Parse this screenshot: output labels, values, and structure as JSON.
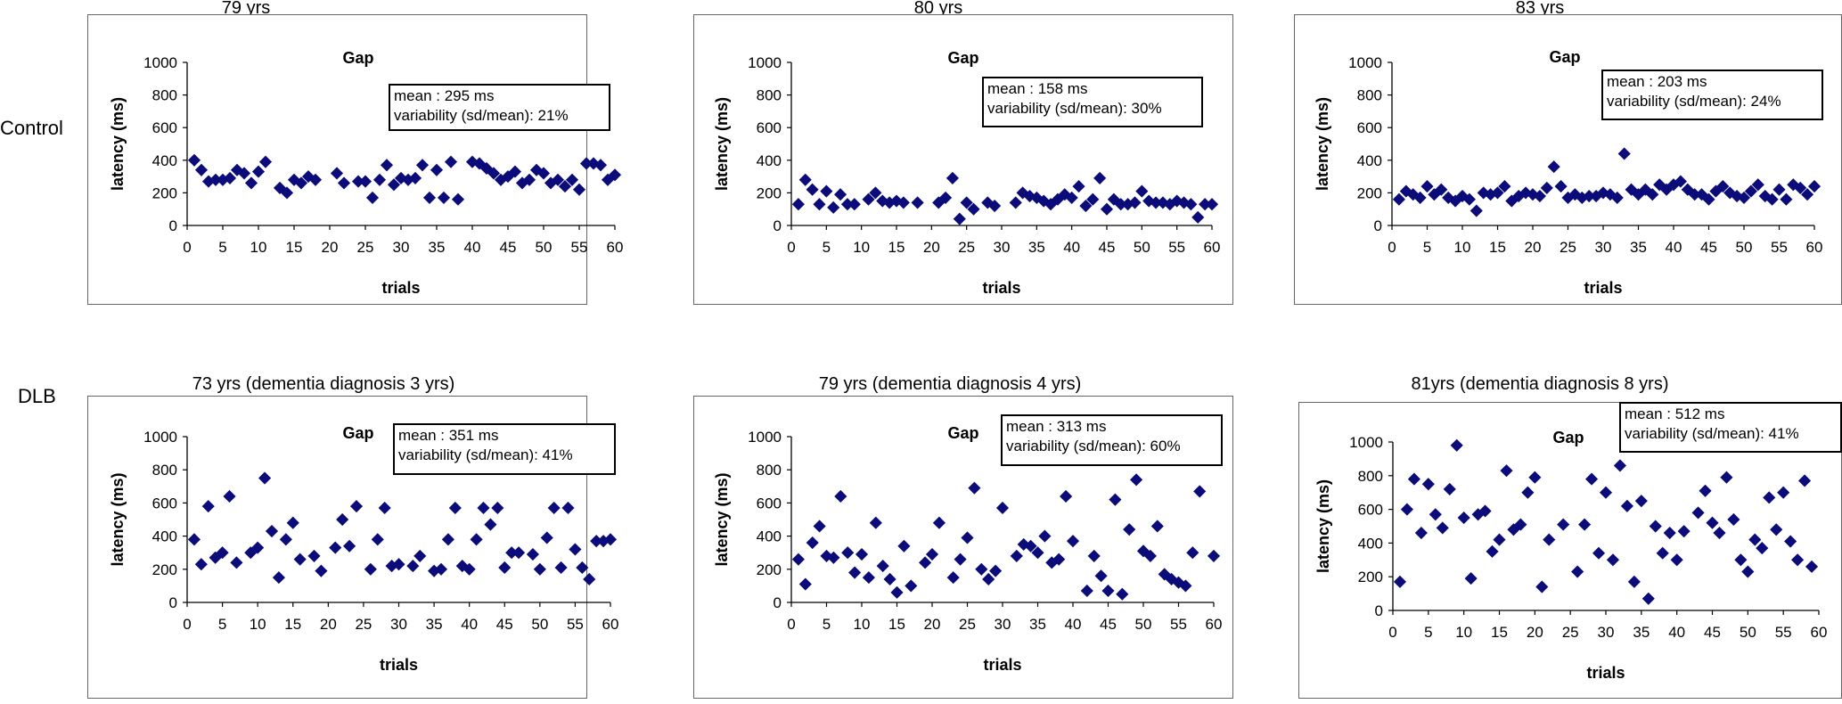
{
  "row_labels": [
    "Control",
    "DLB"
  ],
  "chart_data": [
    {
      "type": "scatter",
      "group": "Control",
      "panel_title": "79 yrs",
      "title": "Gap",
      "xlabel": "trials",
      "ylabel": "latency (ms)",
      "xlim": [
        0,
        60
      ],
      "ylim": [
        0,
        1000
      ],
      "xticks": [
        0,
        5,
        10,
        15,
        20,
        25,
        30,
        35,
        40,
        45,
        50,
        55,
        60
      ],
      "yticks": [
        0,
        200,
        400,
        600,
        800,
        1000
      ],
      "mean_text": "mean : 295 ms",
      "variability_text": "variability (sd/mean): 21%",
      "x": [
        1,
        2,
        3,
        4,
        5,
        6,
        7,
        8,
        9,
        10,
        11,
        13,
        14,
        15,
        16,
        17,
        18,
        21,
        22,
        24,
        25,
        26,
        27,
        28,
        29,
        30,
        31,
        32,
        33,
        34,
        35,
        36,
        37,
        38,
        40,
        41,
        42,
        43,
        44,
        45,
        46,
        47,
        48,
        49,
        50,
        51,
        52,
        53,
        54,
        55,
        56,
        57,
        58,
        59,
        60
      ],
      "y": [
        400,
        340,
        270,
        280,
        280,
        290,
        340,
        320,
        260,
        330,
        390,
        230,
        200,
        280,
        260,
        300,
        280,
        320,
        260,
        270,
        270,
        170,
        280,
        370,
        250,
        290,
        280,
        290,
        370,
        170,
        340,
        170,
        390,
        160,
        390,
        380,
        350,
        320,
        280,
        300,
        330,
        260,
        280,
        340,
        320,
        260,
        280,
        240,
        280,
        220,
        380,
        380,
        370,
        280,
        310
      ]
    },
    {
      "type": "scatter",
      "group": "Control",
      "panel_title": "80 yrs",
      "title": "Gap",
      "xlabel": "trials",
      "ylabel": "latency (ms)",
      "xlim": [
        0,
        60
      ],
      "ylim": [
        0,
        1000
      ],
      "xticks": [
        0,
        5,
        10,
        15,
        20,
        25,
        30,
        35,
        40,
        45,
        50,
        55,
        60
      ],
      "yticks": [
        0,
        200,
        400,
        600,
        800,
        1000
      ],
      "mean_text": "mean : 158 ms",
      "variability_text": "variability (sd/mean): 30%",
      "x": [
        1,
        2,
        3,
        4,
        5,
        6,
        7,
        8,
        9,
        11,
        12,
        13,
        14,
        15,
        16,
        18,
        21,
        22,
        23,
        24,
        25,
        26,
        28,
        29,
        32,
        33,
        34,
        35,
        36,
        37,
        38,
        39,
        40,
        41,
        42,
        43,
        44,
        45,
        46,
        47,
        48,
        49,
        50,
        51,
        52,
        53,
        54,
        55,
        56,
        57,
        58,
        59,
        60
      ],
      "y": [
        130,
        280,
        220,
        130,
        210,
        110,
        190,
        130,
        130,
        160,
        200,
        150,
        140,
        150,
        140,
        140,
        140,
        170,
        290,
        40,
        140,
        100,
        140,
        120,
        140,
        200,
        180,
        170,
        150,
        130,
        160,
        190,
        170,
        240,
        120,
        160,
        290,
        100,
        160,
        130,
        130,
        140,
        210,
        150,
        140,
        140,
        130,
        150,
        140,
        130,
        50,
        130,
        130
      ]
    },
    {
      "type": "scatter",
      "group": "Control",
      "panel_title": "83 yrs",
      "title": "Gap",
      "xlabel": "trials",
      "ylabel": "latency (ms)",
      "xlim": [
        0,
        60
      ],
      "ylim": [
        0,
        1000
      ],
      "xticks": [
        0,
        5,
        10,
        15,
        20,
        25,
        30,
        35,
        40,
        45,
        50,
        55,
        60
      ],
      "yticks": [
        0,
        200,
        400,
        600,
        800,
        1000
      ],
      "mean_text": "mean : 203 ms",
      "variability_text": "variability (sd/mean): 24%",
      "x": [
        1,
        2,
        3,
        4,
        5,
        6,
        7,
        8,
        9,
        10,
        11,
        12,
        13,
        14,
        15,
        16,
        17,
        18,
        19,
        20,
        21,
        22,
        23,
        24,
        25,
        26,
        27,
        28,
        29,
        30,
        31,
        32,
        33,
        34,
        35,
        36,
        37,
        38,
        39,
        40,
        41,
        42,
        43,
        44,
        45,
        46,
        47,
        48,
        49,
        50,
        51,
        52,
        53,
        54,
        55,
        56,
        57,
        58,
        59,
        60
      ],
      "y": [
        160,
        210,
        190,
        170,
        240,
        190,
        220,
        170,
        150,
        180,
        160,
        90,
        200,
        190,
        200,
        240,
        150,
        180,
        200,
        190,
        180,
        230,
        360,
        240,
        170,
        190,
        170,
        180,
        180,
        200,
        190,
        170,
        440,
        220,
        190,
        220,
        190,
        250,
        220,
        250,
        270,
        220,
        190,
        190,
        160,
        210,
        240,
        200,
        180,
        170,
        210,
        250,
        180,
        160,
        220,
        160,
        250,
        230,
        190,
        240
      ]
    },
    {
      "type": "scatter",
      "group": "DLB",
      "panel_title": "73 yrs (dementia diagnosis 3 yrs)",
      "title": "Gap",
      "xlabel": "trials",
      "ylabel": "latency (ms)",
      "xlim": [
        0,
        60
      ],
      "ylim": [
        0,
        1000
      ],
      "xticks": [
        0,
        5,
        10,
        15,
        20,
        25,
        30,
        35,
        40,
        45,
        50,
        55,
        60
      ],
      "yticks": [
        0,
        200,
        400,
        600,
        800,
        1000
      ],
      "mean_text": "mean : 351 ms",
      "variability_text": "variability (sd/mean): 41%",
      "x": [
        1,
        2,
        3,
        4,
        5,
        6,
        7,
        9,
        10,
        11,
        12,
        13,
        14,
        15,
        16,
        18,
        19,
        21,
        22,
        23,
        24,
        26,
        27,
        28,
        29,
        30,
        32,
        33,
        35,
        36,
        37,
        38,
        39,
        40,
        41,
        42,
        43,
        44,
        45,
        46,
        47,
        49,
        50,
        51,
        52,
        53,
        54,
        55,
        56,
        57,
        58,
        59,
        60
      ],
      "y": [
        380,
        230,
        580,
        270,
        300,
        640,
        240,
        300,
        330,
        750,
        430,
        150,
        380,
        480,
        260,
        280,
        190,
        330,
        500,
        340,
        580,
        200,
        380,
        570,
        220,
        230,
        220,
        280,
        190,
        200,
        380,
        570,
        220,
        200,
        380,
        570,
        470,
        570,
        210,
        300,
        300,
        290,
        200,
        390,
        570,
        210,
        570,
        320,
        210,
        140,
        370,
        370,
        380
      ]
    },
    {
      "type": "scatter",
      "group": "DLB",
      "panel_title": "79 yrs (dementia diagnosis 4 yrs)",
      "title": "Gap",
      "xlabel": "trials",
      "ylabel": "latency (ms)",
      "xlim": [
        0,
        60
      ],
      "ylim": [
        0,
        1000
      ],
      "xticks": [
        0,
        5,
        10,
        15,
        20,
        25,
        30,
        35,
        40,
        45,
        50,
        55,
        60
      ],
      "yticks": [
        0,
        200,
        400,
        600,
        800,
        1000
      ],
      "mean_text": "mean : 313 ms",
      "variability_text": "variability (sd/mean): 60%",
      "x": [
        1,
        2,
        3,
        4,
        5,
        6,
        7,
        8,
        9,
        10,
        11,
        12,
        13,
        14,
        15,
        16,
        17,
        19,
        20,
        21,
        23,
        24,
        25,
        26,
        27,
        28,
        29,
        30,
        32,
        33,
        34,
        35,
        36,
        37,
        38,
        39,
        40,
        42,
        43,
        44,
        45,
        46,
        47,
        48,
        49,
        50,
        51,
        52,
        53,
        54,
        55,
        56,
        57,
        58,
        60
      ],
      "y": [
        260,
        110,
        360,
        460,
        280,
        270,
        640,
        300,
        180,
        290,
        150,
        480,
        220,
        140,
        60,
        340,
        100,
        240,
        290,
        480,
        150,
        260,
        390,
        690,
        200,
        140,
        190,
        570,
        280,
        350,
        340,
        300,
        400,
        240,
        260,
        640,
        370,
        70,
        280,
        160,
        70,
        620,
        50,
        440,
        740,
        310,
        280,
        460,
        170,
        140,
        120,
        100,
        300,
        670,
        280
      ]
    },
    {
      "type": "scatter",
      "group": "DLB",
      "panel_title": "81yrs (dementia diagnosis 8 yrs)",
      "title": "Gap",
      "xlabel": "trials",
      "ylabel": "latency (ms)",
      "xlim": [
        0,
        60
      ],
      "ylim": [
        0,
        1000
      ],
      "xticks": [
        0,
        5,
        10,
        15,
        20,
        25,
        30,
        35,
        40,
        45,
        50,
        55,
        60
      ],
      "yticks": [
        0,
        200,
        400,
        600,
        800,
        1000
      ],
      "mean_text": "mean : 512 ms",
      "variability_text": "variability (sd/mean): 41%",
      "x": [
        1,
        2,
        3,
        4,
        5,
        6,
        7,
        8,
        9,
        10,
        11,
        12,
        13,
        14,
        15,
        16,
        17,
        18,
        19,
        20,
        21,
        22,
        24,
        26,
        27,
        28,
        29,
        30,
        31,
        32,
        33,
        34,
        35,
        36,
        37,
        38,
        39,
        40,
        41,
        43,
        44,
        45,
        46,
        47,
        48,
        49,
        50,
        51,
        52,
        53,
        54,
        55,
        56,
        57,
        58,
        59
      ],
      "y": [
        170,
        600,
        780,
        460,
        750,
        570,
        490,
        720,
        980,
        550,
        190,
        570,
        590,
        350,
        420,
        830,
        480,
        510,
        700,
        790,
        140,
        420,
        510,
        230,
        510,
        780,
        340,
        700,
        300,
        860,
        620,
        170,
        650,
        70,
        500,
        340,
        460,
        300,
        470,
        580,
        710,
        520,
        460,
        790,
        540,
        300,
        230,
        420,
        370,
        670,
        480,
        700,
        410,
        300,
        770,
        260
      ]
    }
  ]
}
